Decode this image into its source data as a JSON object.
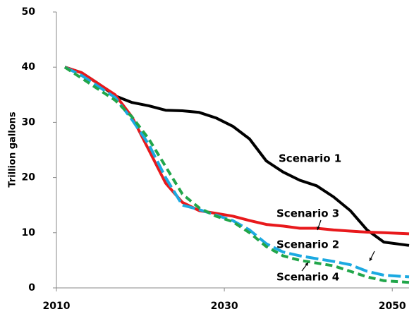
{
  "chart_data": {
    "type": "line",
    "y_label": "Trillion gallons",
    "x": [
      2011,
      2013,
      2015,
      2017,
      2019,
      2021,
      2023,
      2025,
      2027,
      2029,
      2031,
      2033,
      2035,
      2037,
      2039,
      2041,
      2043,
      2045,
      2047,
      2049,
      2052
    ],
    "series": [
      {
        "name": "Scenario 1",
        "color": "#000000",
        "dash": "solid",
        "values": [
          40,
          39,
          37,
          34.8,
          33.6,
          33,
          32.2,
          32.1,
          31.8,
          30.8,
          29.3,
          27,
          23,
          21,
          19.5,
          18.5,
          16.5,
          14,
          10.5,
          8.3,
          7.7
        ]
      },
      {
        "name": "Scenario 3",
        "color": "#e8191c",
        "dash": "solid",
        "values": [
          40,
          39,
          37,
          35,
          31,
          25,
          19,
          15.5,
          14,
          13.5,
          13,
          12.2,
          11.5,
          11.2,
          10.8,
          10.8,
          10.5,
          10.3,
          10.1,
          10,
          9.8
        ]
      },
      {
        "name": "Scenario 2",
        "color": "#1ba9e1",
        "dash": "long",
        "values": [
          40,
          38.5,
          36.5,
          34.5,
          30.5,
          26,
          20,
          15,
          14.2,
          13.2,
          12.2,
          10.5,
          8,
          6.5,
          5.8,
          5.3,
          4.8,
          4.2,
          3,
          2.3,
          2
        ]
      },
      {
        "name": "Scenario 4",
        "color": "#21a64a",
        "dash": "short",
        "values": [
          40,
          38,
          36,
          34,
          31,
          27,
          22,
          17,
          14.5,
          13,
          12,
          10,
          7.5,
          5.8,
          5,
          4.5,
          4,
          3,
          2,
          1.3,
          1
        ]
      }
    ],
    "xlim": [
      2010,
      2052
    ],
    "xticks": [
      2010,
      2030,
      2050
    ],
    "ylim": [
      0,
      50
    ],
    "yticks": [
      0,
      10,
      20,
      30,
      40,
      50
    ],
    "grid": false
  }
}
